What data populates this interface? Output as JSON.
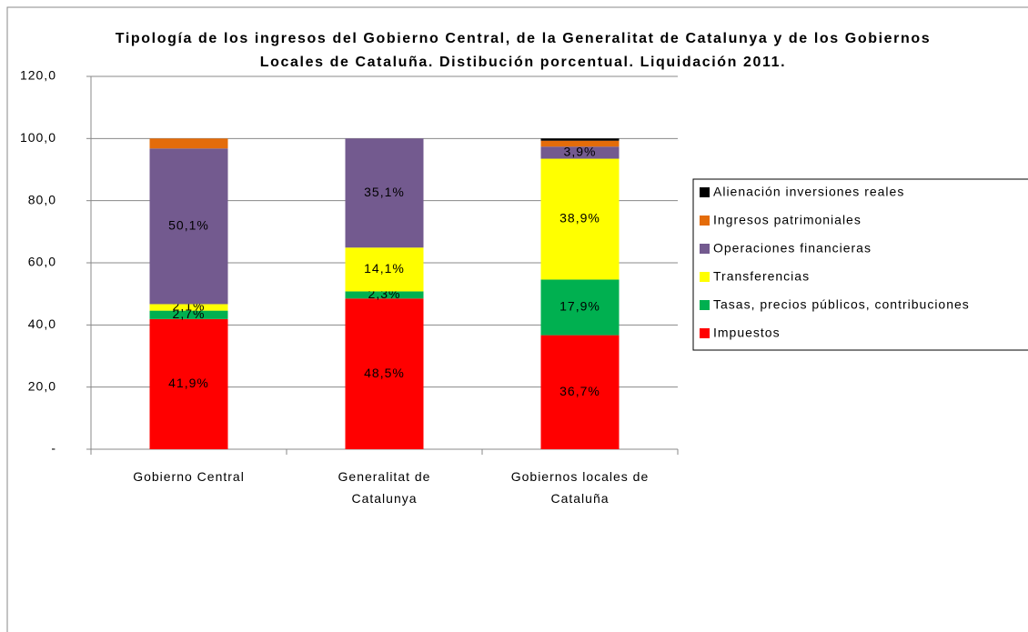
{
  "chart_data": {
    "type": "stacked_bar",
    "title": "Tipología de los ingresos del Gobierno Central, de la Generalitat de Catalunya y de los Gobiernos Locales de Cataluña. Distibución porcentual. Liquidación 2011.",
    "categories": [
      "Gobierno Central",
      "Generalitat de Catalunya",
      "Gobiernos locales de Cataluña"
    ],
    "series": [
      {
        "name": "Impuestos",
        "color": "#ff0000",
        "values": [
          41.9,
          48.5,
          36.7
        ],
        "value_labels": [
          "41,9%",
          "48,5%",
          "36,7%"
        ]
      },
      {
        "name": "Tasas, precios públicos, contribuciones",
        "color": "#00b050",
        "values": [
          2.7,
          2.3,
          17.9
        ],
        "value_labels": [
          "2,7%",
          "2,3%",
          "17,9%"
        ]
      },
      {
        "name": "Transferencias",
        "color": "#ffff00",
        "values": [
          2.1,
          14.1,
          38.9
        ],
        "value_labels": [
          "2,1%",
          "14,1%",
          "38,9%"
        ]
      },
      {
        "name": "Operaciones financieras",
        "color": "#735a8f",
        "values": [
          50.1,
          35.1,
          3.9
        ],
        "value_labels": [
          "50,1%",
          "35,1%",
          "3,9%"
        ]
      },
      {
        "name": "Ingresos patrimoniales",
        "color": "#e46c0a",
        "values": [
          3.2,
          0,
          1.9
        ]
      },
      {
        "name": "Alienación inversiones reales",
        "color": "#000000",
        "values": [
          0,
          0,
          0.7
        ]
      }
    ],
    "ylim": [
      0,
      120
    ],
    "yticks": [
      {
        "value": 0,
        "label": "-"
      },
      {
        "value": 20,
        "label": "20,0"
      },
      {
        "value": 40,
        "label": "40,0"
      },
      {
        "value": 60,
        "label": "60,0"
      },
      {
        "value": 80,
        "label": "80,0"
      },
      {
        "value": 100,
        "label": "100,0"
      },
      {
        "value": 120,
        "label": "120,0"
      }
    ],
    "grid": true,
    "legend": "right"
  }
}
